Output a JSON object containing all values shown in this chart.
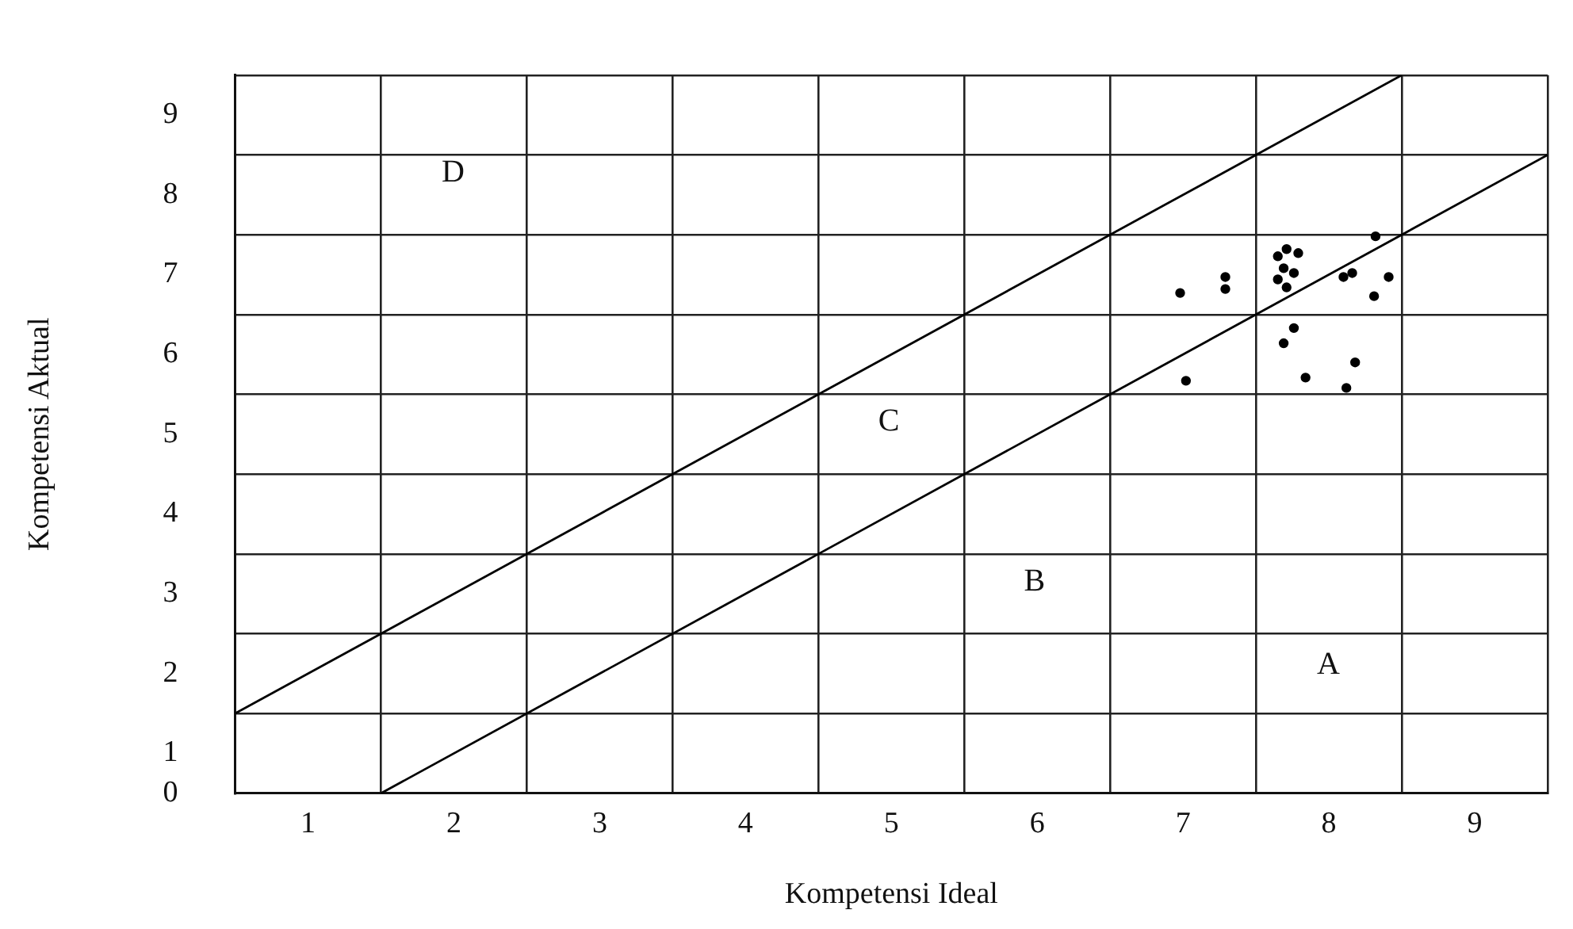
{
  "chart_data": {
    "type": "scatter",
    "xlabel": "Kompetensi Ideal",
    "ylabel": "Kompetensi Aktual",
    "xlim": [
      0,
      9
    ],
    "ylim": [
      0,
      9
    ],
    "xticks": [
      {
        "value": 0,
        "label": null
      },
      {
        "value": 0.5,
        "label": "1"
      },
      {
        "value": 1,
        "label": null
      },
      {
        "value": 1.5,
        "label": "2"
      },
      {
        "value": 2,
        "label": null
      },
      {
        "value": 2.5,
        "label": "3"
      },
      {
        "value": 3,
        "label": null
      },
      {
        "value": 3.5,
        "label": "4"
      },
      {
        "value": 4,
        "label": null
      },
      {
        "value": 4.5,
        "label": "5"
      },
      {
        "value": 5,
        "label": null
      },
      {
        "value": 5.5,
        "label": "6"
      },
      {
        "value": 6,
        "label": null
      },
      {
        "value": 6.5,
        "label": "7"
      },
      {
        "value": 7,
        "label": null
      },
      {
        "value": 7.5,
        "label": "8"
      },
      {
        "value": 8,
        "label": null
      },
      {
        "value": 8.5,
        "label": "9"
      },
      {
        "value": 9,
        "label": null
      }
    ],
    "yticks": [
      {
        "value": 0,
        "label": "0"
      },
      {
        "value": 0.5,
        "label": "1"
      },
      {
        "value": 1,
        "label": null
      },
      {
        "value": 1.5,
        "label": "2"
      },
      {
        "value": 2,
        "label": null
      },
      {
        "value": 2.5,
        "label": "3"
      },
      {
        "value": 3,
        "label": null
      },
      {
        "value": 3.5,
        "label": "4"
      },
      {
        "value": 4,
        "label": null
      },
      {
        "value": 4.5,
        "label": "5"
      },
      {
        "value": 5,
        "label": null
      },
      {
        "value": 5.5,
        "label": "6"
      },
      {
        "value": 6,
        "label": null
      },
      {
        "value": 6.5,
        "label": "7"
      },
      {
        "value": 7,
        "label": null
      },
      {
        "value": 7.5,
        "label": "8"
      },
      {
        "value": 8,
        "label": null
      },
      {
        "value": 8.5,
        "label": "9"
      },
      {
        "value": 9,
        "label": null
      }
    ],
    "grid": true,
    "legend": false,
    "series": [
      {
        "type": "scatter",
        "marker": "circle",
        "color": "#000000",
        "x": [
          6.48,
          6.79,
          6.79,
          7.15,
          7.21,
          7.29,
          7.19,
          7.26,
          7.15,
          7.21,
          7.6,
          7.66,
          7.82,
          7.91,
          7.81,
          7.26,
          7.19,
          6.52,
          7.34,
          7.68,
          7.62
        ],
        "values": [
          6.27,
          6.47,
          6.32,
          6.73,
          6.82,
          6.77,
          6.58,
          6.52,
          6.44,
          6.34,
          6.47,
          6.52,
          6.98,
          6.47,
          6.23,
          5.83,
          5.64,
          5.17,
          5.21,
          5.4,
          5.08
        ]
      },
      {
        "type": "line",
        "marker": "none",
        "color": "#000000",
        "x": [
          0,
          8
        ],
        "values": [
          1,
          9
        ]
      },
      {
        "type": "line",
        "marker": "none",
        "color": "#000000",
        "x": [
          1,
          9
        ],
        "values": [
          0,
          8
        ]
      }
    ],
    "annotations": [
      "D",
      "C",
      "B",
      "A"
    ]
  }
}
